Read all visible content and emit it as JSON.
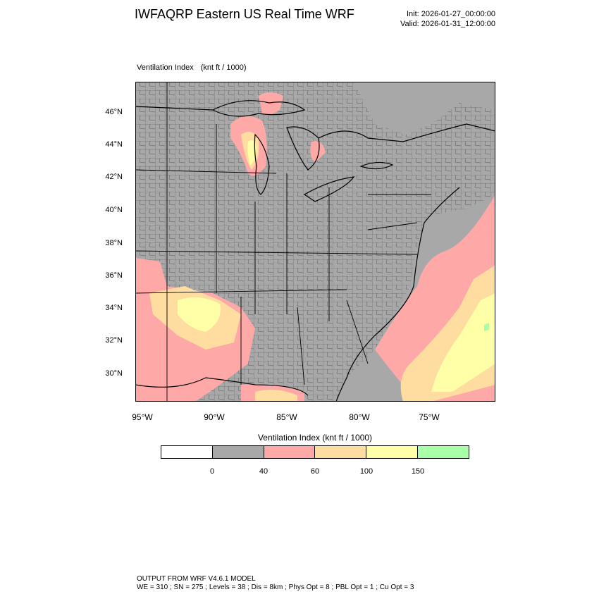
{
  "header": {
    "title": "IWFAQRP Eastern US Real Time WRF",
    "init": "Init: 2026-01-27_00:00:00",
    "valid": "Valid: 2026-01-31_12:00:00"
  },
  "map": {
    "field_name": "Ventilation Index",
    "units": "(knt ft / 1000)",
    "lat_labels": [
      "46°N",
      "44°N",
      "42°N",
      "40°N",
      "38°N",
      "36°N",
      "34°N",
      "32°N",
      "30°N"
    ],
    "lon_labels": [
      "95°W",
      "90°W",
      "85°W",
      "80°W",
      "75°W"
    ],
    "colors": {
      "background": "#a8a8a8",
      "class_40_60": "#ffa8a8",
      "class_60_100": "#ffdca0",
      "class_100_150": "#ffffa8",
      "class_150_plus": "#a8ffa8",
      "lines": "#000000"
    }
  },
  "colorbar": {
    "title": "Ventilation Index  (knt ft / 1000)",
    "colors": [
      "#ffffff",
      "#a8a8a8",
      "#ffa8a8",
      "#ffdca0",
      "#ffffa8",
      "#a8ffa8"
    ],
    "tick_labels": [
      "0",
      "40",
      "60",
      "100",
      "150"
    ]
  },
  "footer": {
    "line1": "OUTPUT FROM WRF V4.6.1 MODEL",
    "line2": "WE = 310 ; SN = 275 ; Levels = 38 ; Dis = 8km ; Phys Opt = 8 ; PBL Opt = 1 ; Cu Opt = 3"
  }
}
